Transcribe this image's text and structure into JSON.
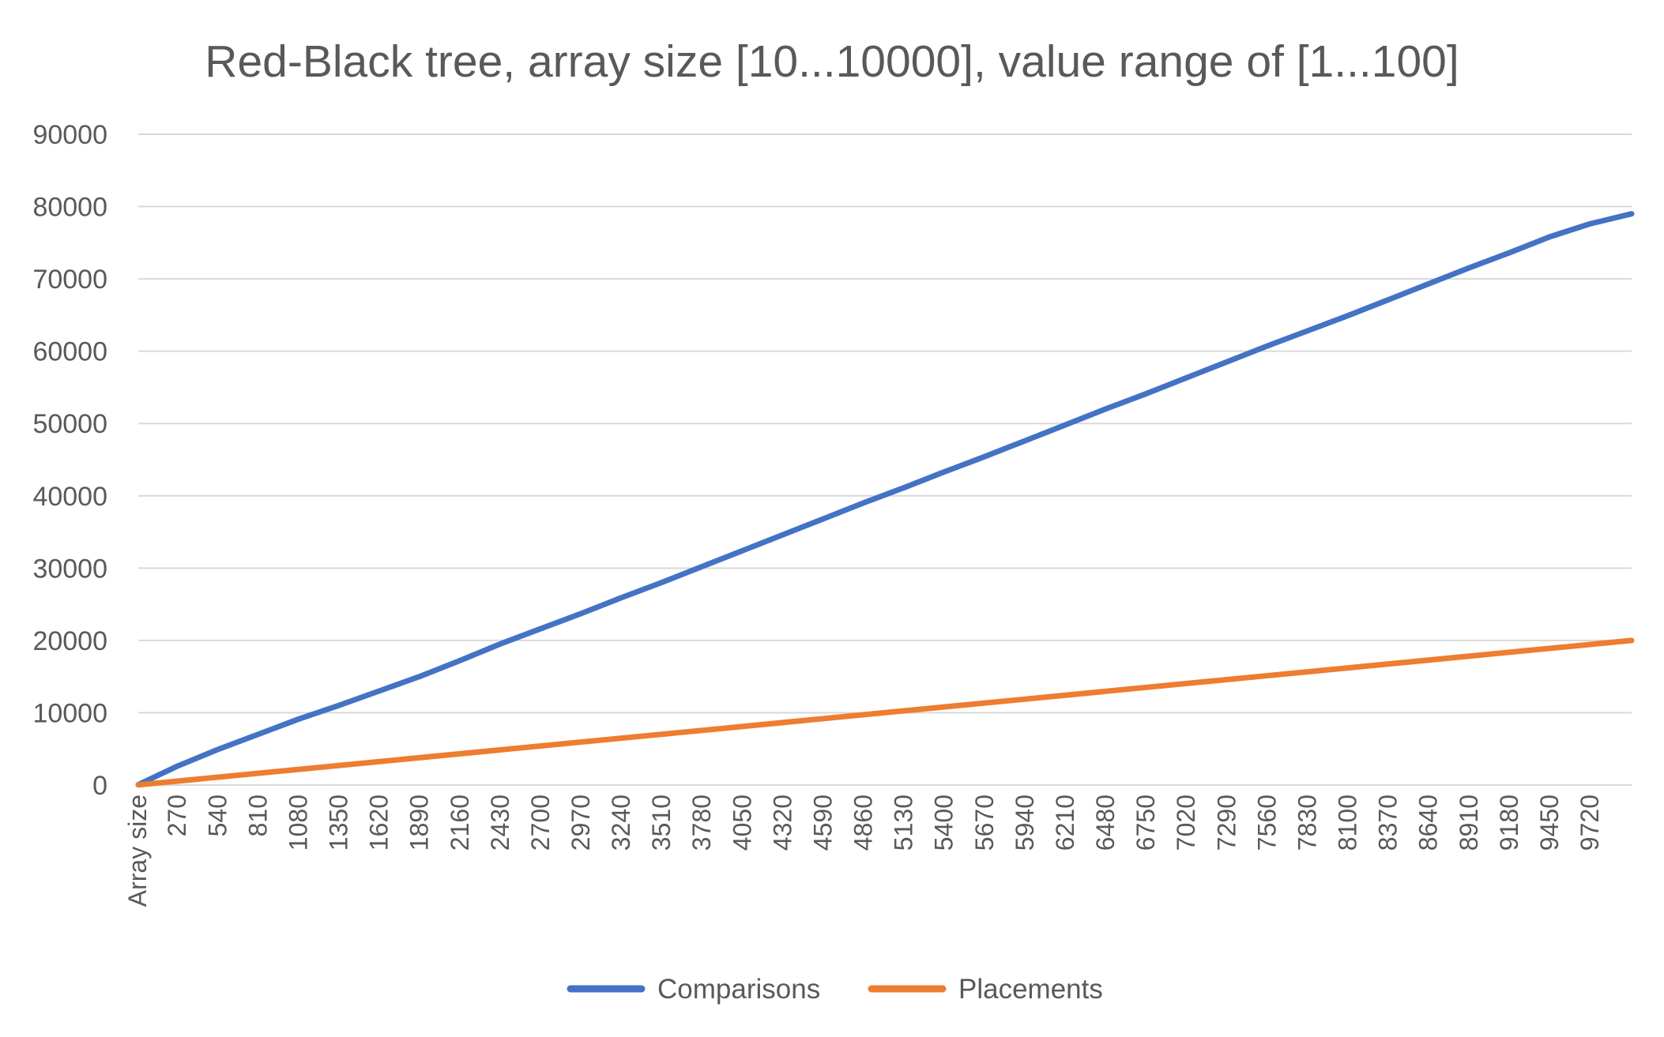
{
  "chart_data": {
    "type": "line",
    "title": "Red-Black tree, array size [10...10000], value range of [1...100]",
    "xlabel": "",
    "ylabel": "",
    "x_first_label": "Array size",
    "x_tick_labels": [
      "270",
      "540",
      "810",
      "1080",
      "1350",
      "1620",
      "1890",
      "2160",
      "2430",
      "2700",
      "2970",
      "3240",
      "3510",
      "3780",
      "4050",
      "4320",
      "4590",
      "4860",
      "5130",
      "5400",
      "5670",
      "5940",
      "6210",
      "6480",
      "6750",
      "7020",
      "7290",
      "7560",
      "7830",
      "8100",
      "8370",
      "8640",
      "8910",
      "9180",
      "9450",
      "9720"
    ],
    "x_range": [
      10,
      10000
    ],
    "y_ticks": [
      0,
      10000,
      20000,
      30000,
      40000,
      50000,
      60000,
      70000,
      80000,
      90000
    ],
    "ylim": [
      0,
      90000
    ],
    "grid": true,
    "legend_position": "bottom",
    "series": [
      {
        "name": "Comparisons",
        "color": "#4472C4",
        "x": [
          10,
          270,
          540,
          810,
          1080,
          1350,
          1620,
          1890,
          2160,
          2430,
          2700,
          2970,
          3240,
          3510,
          3780,
          4050,
          4320,
          4590,
          4860,
          5130,
          5400,
          5670,
          5940,
          6210,
          6480,
          6750,
          7020,
          7290,
          7560,
          7830,
          8100,
          8370,
          8640,
          8910,
          9180,
          9450,
          9720,
          10000
        ],
        "y": [
          50,
          2600,
          4900,
          7000,
          9100,
          11000,
          13000,
          15000,
          17200,
          19500,
          21600,
          23700,
          25900,
          28000,
          30200,
          32400,
          34600,
          36800,
          39000,
          41100,
          43300,
          45400,
          47600,
          49800,
          52000,
          54100,
          56300,
          58500,
          60700,
          62800,
          64900,
          67100,
          69300,
          71500,
          73600,
          75800,
          77600,
          79000
        ]
      },
      {
        "name": "Placements",
        "color": "#ED7D31",
        "x": [
          10,
          10000
        ],
        "y": [
          20,
          20000
        ]
      }
    ]
  }
}
